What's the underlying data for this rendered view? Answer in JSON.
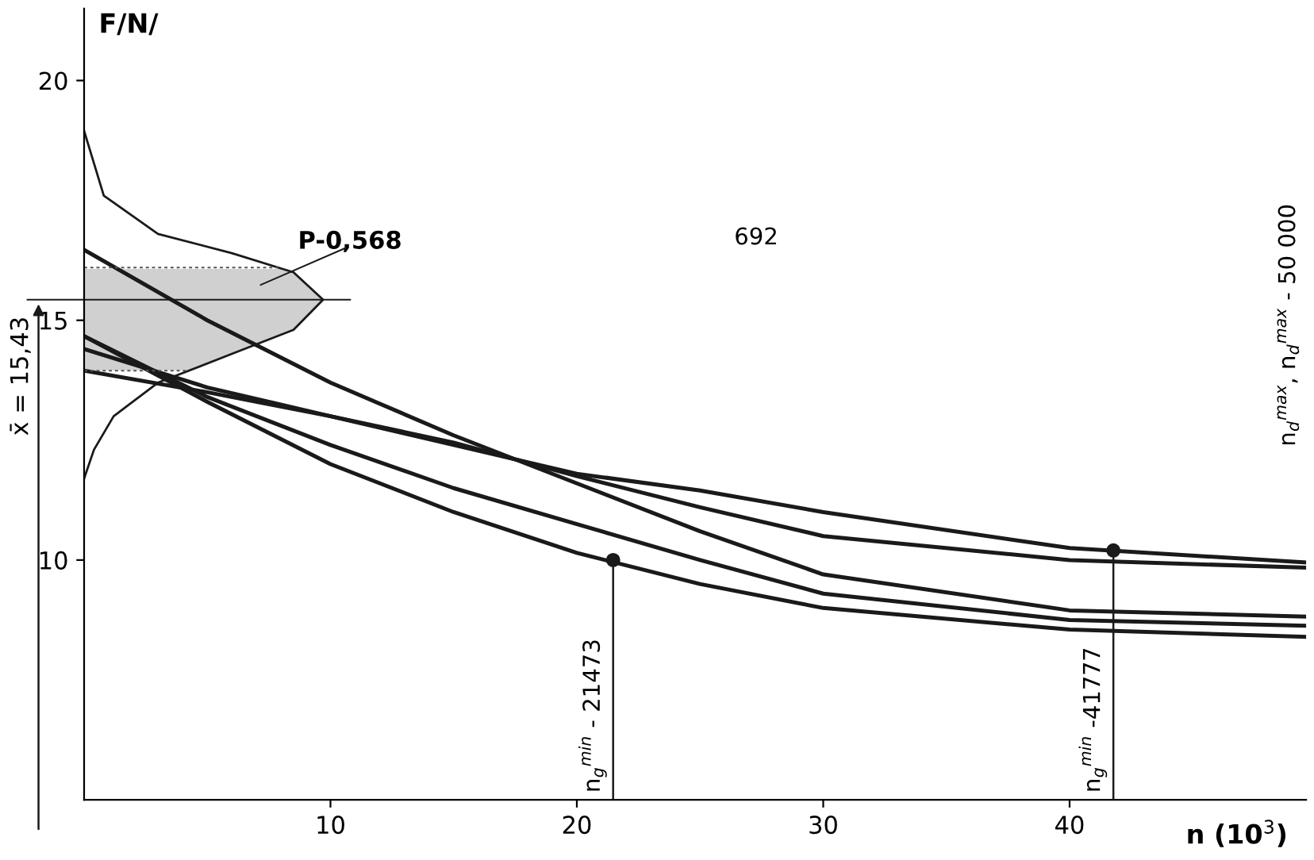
{
  "chart_data": {
    "type": "line",
    "xlabel": "n (10$^{3}$)",
    "ylabel": "F/N/",
    "xlim": [
      0,
      49.6
    ],
    "ylim": [
      5,
      21.5
    ],
    "xticks": [
      10,
      20,
      30,
      40
    ],
    "yticks": [
      10,
      15,
      20
    ],
    "grid": false,
    "legend": false,
    "marker": "none",
    "line_style": "solid",
    "x": [
      0,
      5,
      10,
      15,
      20,
      25,
      30,
      40,
      49.6
    ],
    "series": [
      {
        "color": "#1a1a1a",
        "values": [
          16.47,
          15.0,
          13.7,
          12.6,
          11.6,
          10.6,
          9.7,
          8.95,
          8.82
        ]
      },
      {
        "color": "#1a1a1a",
        "values": [
          13.95,
          13.5,
          13.0,
          12.4,
          11.8,
          11.45,
          11.0,
          10.25,
          9.95
        ]
      },
      {
        "color": "#1a1a1a",
        "values": [
          14.4,
          13.6,
          13.0,
          12.45,
          11.75,
          11.1,
          10.5,
          10.0,
          9.84
        ]
      },
      {
        "color": "#1a1a1a",
        "values": [
          14.67,
          13.4,
          12.4,
          11.5,
          10.75,
          10.0,
          9.3,
          8.75,
          8.63
        ]
      },
      {
        "color": "#1a1a1a",
        "values": [
          14.67,
          13.3,
          12.0,
          11.0,
          10.15,
          9.5,
          9.0,
          8.55,
          8.4
        ]
      },
      {
        "type": "line",
        "color": "#1a1a1a",
        "x": [
          0,
          0.8,
          3,
          6,
          8.5,
          9.7,
          8.5,
          6,
          3,
          1.2,
          0.4,
          0
        ],
        "values": [
          18.95,
          17.6,
          16.8,
          16.4,
          16.0,
          15.43,
          14.8,
          14.3,
          13.7,
          13.0,
          12.3,
          11.7
        ]
      },
      {
        "type": "scatter",
        "color": "#1a1a1a",
        "marker": "circle",
        "x": [
          21.473,
          41.777
        ],
        "values": [
          10.0,
          10.2
        ]
      }
    ],
    "ref_lines": [
      {
        "axis": "y",
        "value": 15.43,
        "label": "x̄ = 15,43"
      },
      {
        "axis": "x",
        "value": 21.473,
        "label": "n$_{g}$$^{min}$ - 21473"
      },
      {
        "axis": "x",
        "value": 41.777,
        "label": "n$_{g}$$^{min}$ -41777"
      }
    ],
    "annotations": [
      "P-0,568",
      "692",
      "n$_{d}$$^{max}$, n$_{d}$$^{max}$ - 50 000"
    ]
  }
}
